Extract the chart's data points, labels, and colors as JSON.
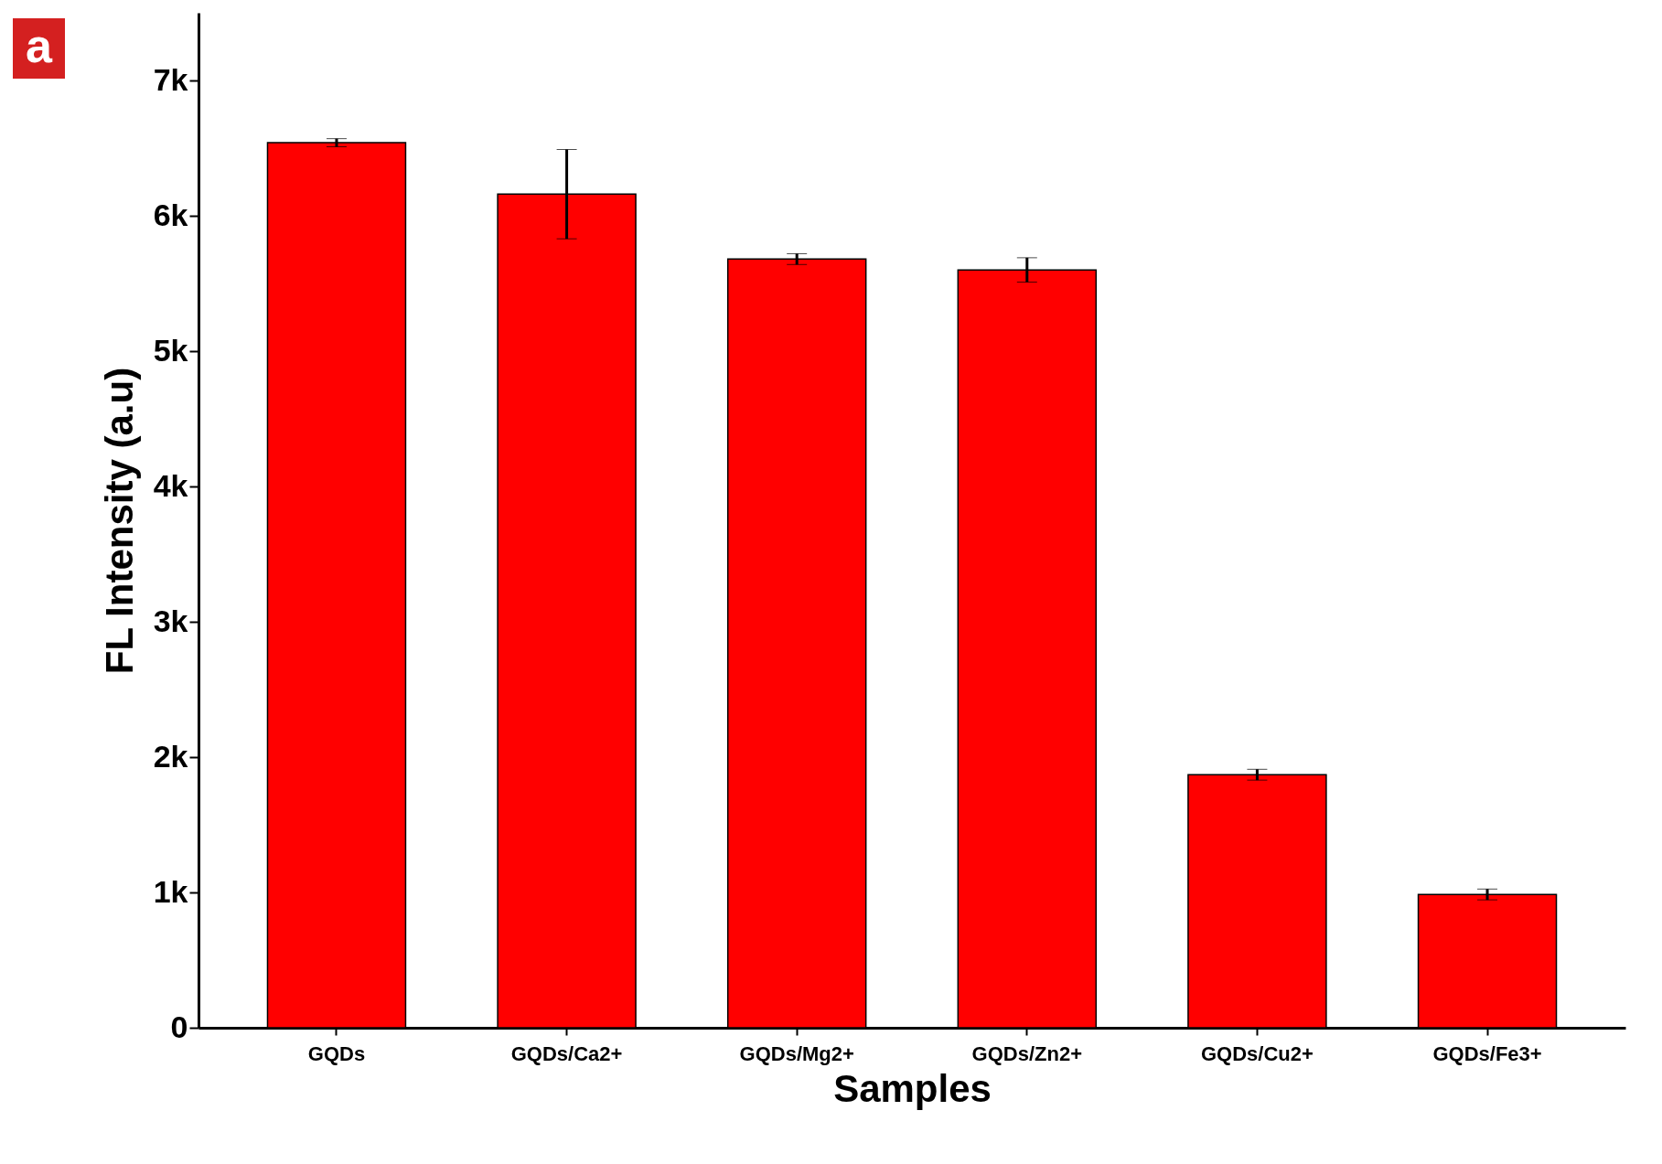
{
  "chart_data": {
    "type": "bar",
    "xlabel": "Samples",
    "ylabel": "FL Intensity (a.u)",
    "categories": [
      "GQDs",
      "GQDs/Ca2+",
      "GQDs/Mg2+",
      "GQDs/Zn2+",
      "GQDs/Cu2+",
      "GQDs/Fe3+"
    ],
    "values": [
      6540,
      6160,
      5680,
      5600,
      1870,
      985
    ],
    "errors": [
      30,
      330,
      40,
      90,
      40,
      40
    ],
    "color": "#ff0000",
    "ylim": [
      0,
      7500
    ],
    "yticks": [
      0,
      {
        "value": 1000,
        "label": "1k"
      },
      {
        "value": 2000,
        "label": "2k"
      },
      {
        "value": 3000,
        "label": "3k"
      },
      {
        "value": 4000,
        "label": "4k"
      },
      {
        "value": 5000,
        "label": "5k"
      },
      {
        "value": 6000,
        "label": "6k"
      },
      {
        "value": 7000,
        "label": "7k"
      }
    ],
    "grid": false,
    "annotations": [
      "a"
    ]
  }
}
